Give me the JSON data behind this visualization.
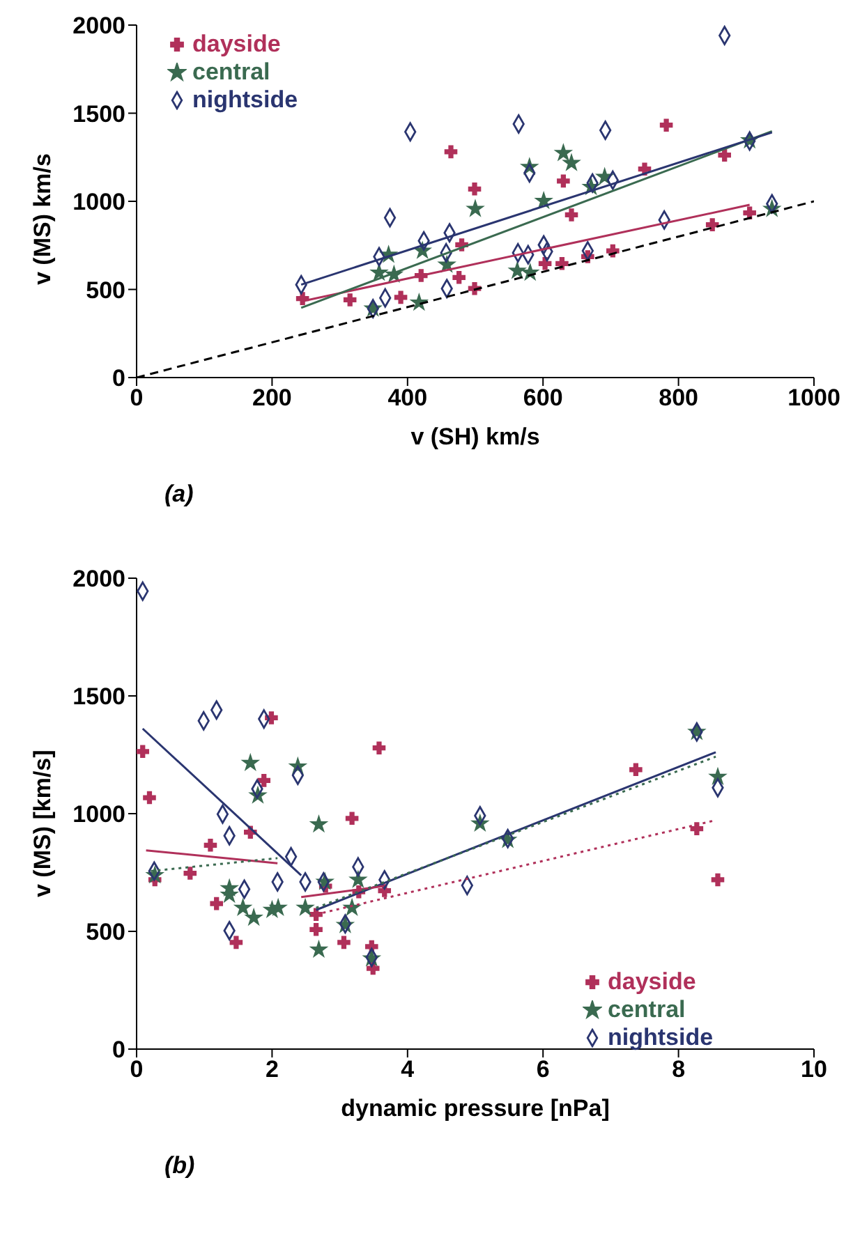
{
  "chart_data": [
    {
      "type": "scatter",
      "xlabel": "v (SH) km/s",
      "ylabel": "v (MS) km/s",
      "xlim": [
        0,
        1000
      ],
      "ylim": [
        0,
        2000
      ],
      "xticks": [
        0,
        200,
        400,
        600,
        800,
        1000
      ],
      "yticks": [
        0,
        500,
        1000,
        1500,
        2000
      ],
      "grid": false,
      "legend": "top left",
      "annotations": [
        "(a)"
      ],
      "series": [
        {
          "name": "dayside",
          "color": "#b0305a",
          "marker": "cross",
          "x": [
            245,
            315,
            390,
            420,
            464,
            476,
            480,
            499,
            499,
            603,
            628,
            630,
            642,
            666,
            703,
            750,
            782,
            850,
            868,
            905
          ],
          "values": [
            448,
            441,
            455,
            579,
            1281,
            568,
            753,
            1070,
            505,
            647,
            647,
            1115,
            923,
            686,
            719,
            1183,
            1432,
            867,
            1262,
            934
          ]
        },
        {
          "name": "central",
          "color": "#3a6a50",
          "marker": "star",
          "x": [
            349,
            358,
            372,
            380,
            417,
            422,
            458,
            500,
            562,
            581,
            580,
            601,
            630,
            642,
            671,
            691,
            905,
            938
          ],
          "values": [
            391,
            595,
            697,
            584,
            425,
            719,
            640,
            957,
            606,
            595,
            1195,
            1002,
            1274,
            1217,
            1081,
            1138,
            1346,
            957
          ]
        },
        {
          "name": "nightside",
          "color": "#2a3570",
          "marker": "diamond",
          "x": [
            243,
            349,
            358,
            367,
            374,
            404,
            424,
            457,
            458,
            462,
            564,
            563,
            578,
            580,
            601,
            606,
            666,
            673,
            692,
            703,
            779,
            868,
            905,
            938
          ],
          "values": [
            527,
            391,
            686,
            452,
            907,
            1394,
            776,
            708,
            505,
            821,
            1439,
            708,
            697,
            1161,
            753,
            715,
            719,
            1104,
            1403,
            1120,
            894,
            1941,
            1342,
            986
          ]
        },
        {
          "type": "line",
          "color": "#000000",
          "line_style": "dashed",
          "x": [
            0,
            1000
          ],
          "values": [
            0,
            1000
          ]
        },
        {
          "type": "line",
          "color": "#b0305a",
          "line_style": "solid",
          "x": [
            243,
            905
          ],
          "values": [
            432,
            980
          ]
        },
        {
          "type": "line",
          "color": "#3a6a50",
          "line_style": "solid",
          "x": [
            243,
            938
          ],
          "values": [
            396,
            1398
          ]
        },
        {
          "type": "line",
          "color": "#2a3570",
          "line_style": "solid",
          "x": [
            243,
            938
          ],
          "values": [
            527,
            1391
          ]
        }
      ]
    },
    {
      "type": "scatter",
      "xlabel": "dynamic pressure [nPa]",
      "ylabel": "v (MS) [km/s]",
      "xlim": [
        0,
        10
      ],
      "ylim": [
        0,
        2000
      ],
      "xticks": [
        0,
        2,
        4,
        6,
        8,
        10
      ],
      "yticks": [
        0,
        500,
        1000,
        1500,
        2000
      ],
      "grid": false,
      "legend": "bottom right",
      "annotations": [
        "(b)"
      ],
      "series": [
        {
          "name": "dayside",
          "color": "#b0305a",
          "marker": "cross",
          "x": [
            0.09,
            0.19,
            0.27,
            0.79,
            1.09,
            1.18,
            1.47,
            1.68,
            1.88,
            1.99,
            2.65,
            2.65,
            2.79,
            3.06,
            3.18,
            3.28,
            3.47,
            3.49,
            3.58,
            3.66,
            7.37,
            8.27,
            8.58
          ],
          "values": [
            1264,
            1068,
            719,
            747,
            866,
            618,
            453,
            921,
            1141,
            1407,
            572,
            508,
            692,
            453,
            980,
            668,
            435,
            343,
            1279,
            673,
            1187,
            936,
            719
          ]
        },
        {
          "name": "central",
          "color": "#3a6a50",
          "marker": "star",
          "x": [
            0.27,
            1.37,
            1.37,
            1.57,
            1.68,
            1.73,
            1.79,
            2.0,
            2.09,
            2.38,
            2.49,
            2.69,
            2.69,
            2.78,
            3.18,
            3.27,
            3.08,
            3.47,
            5.07,
            5.48,
            8.27,
            8.58
          ],
          "values": [
            738,
            683,
            655,
            600,
            1215,
            558,
            1077,
            591,
            600,
            1200,
            600,
            954,
            422,
            710,
            600,
            719,
            527,
            385,
            958,
            888,
            1347,
            1156
          ]
        },
        {
          "name": "nightside",
          "color": "#2a3570",
          "marker": "diamond",
          "x": [
            0.09,
            0.26,
            0.99,
            1.18,
            1.27,
            1.37,
            1.37,
            1.59,
            1.78,
            1.88,
            2.08,
            2.28,
            2.38,
            2.49,
            2.76,
            3.08,
            3.27,
            3.47,
            3.66,
            4.88,
            5.07,
            5.48,
            8.27,
            8.58
          ],
          "values": [
            1945,
            756,
            1394,
            1440,
            998,
            906,
            503,
            679,
            1105,
            1402,
            710,
            817,
            1163,
            710,
            710,
            532,
            774,
            389,
            719,
            695,
            991,
            894,
            1347,
            1110
          ]
        },
        {
          "type": "line",
          "color": "#2a3570",
          "line_style": "solid",
          "x": [
            0.09,
            2.43
          ],
          "values": [
            1361,
            738
          ]
        },
        {
          "type": "line",
          "color": "#b0305a",
          "line_style": "solid",
          "x": [
            0.14,
            2.08
          ],
          "values": [
            844,
            789
          ]
        },
        {
          "type": "line",
          "color": "#3a6a50",
          "line_style": "dotted",
          "x": [
            0.21,
            2.08
          ],
          "values": [
            756,
            811
          ]
        },
        {
          "type": "line",
          "color": "#2a3570",
          "line_style": "solid",
          "x": [
            2.65,
            8.55
          ],
          "values": [
            591,
            1261
          ]
        },
        {
          "type": "line",
          "color": "#b0305a",
          "line_style": "solid",
          "x": [
            2.43,
            3.65
          ],
          "values": [
            646,
            692
          ]
        },
        {
          "type": "line",
          "color": "#b0305a",
          "line_style": "dotted",
          "x": [
            2.65,
            8.55
          ],
          "values": [
            572,
            972
          ]
        },
        {
          "type": "line",
          "color": "#3a6a50",
          "line_style": "dotted",
          "x": [
            2.65,
            8.55
          ],
          "values": [
            600,
            1242
          ]
        }
      ]
    }
  ]
}
